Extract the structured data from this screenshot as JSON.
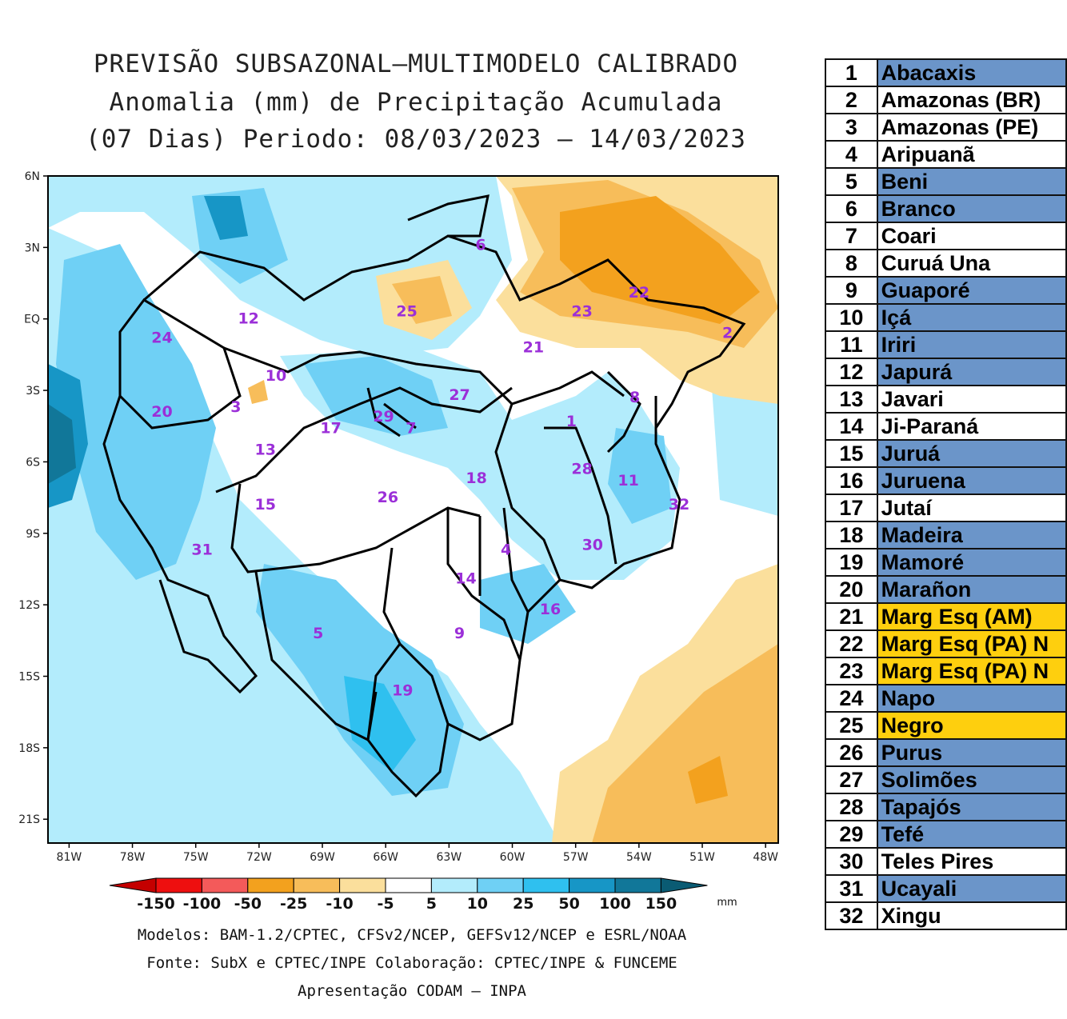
{
  "title": {
    "line1": "PREVISÃO SUBSAZONAL—MULTIMODELO CALIBRADO",
    "line2": "Anomalia (mm) de Precipitação Acumulada",
    "line3": "(07 Dias) Periodo: 08/03/2023 — 14/03/2023"
  },
  "axes": {
    "lat_ticks": [
      "6N",
      "3N",
      "EQ",
      "3S",
      "6S",
      "9S",
      "12S",
      "15S",
      "18S",
      "21S"
    ],
    "lon_ticks": [
      "81W",
      "78W",
      "75W",
      "72W",
      "69W",
      "66W",
      "63W",
      "60W",
      "57W",
      "54W",
      "51W",
      "48W"
    ]
  },
  "basin_labels": [
    {
      "id": "1",
      "x": -57.2,
      "y": -4.5
    },
    {
      "id": "2",
      "x": -49.8,
      "y": -0.8
    },
    {
      "id": "3",
      "x": -73.1,
      "y": -3.9
    },
    {
      "id": "4",
      "x": -60.3,
      "y": -9.9
    },
    {
      "id": "5",
      "x": -69.2,
      "y": -13.4
    },
    {
      "id": "6",
      "x": -61.5,
      "y": 2.9
    },
    {
      "id": "7",
      "x": -64.8,
      "y": -4.8
    },
    {
      "id": "8",
      "x": -54.2,
      "y": -3.5
    },
    {
      "id": "9",
      "x": -62.5,
      "y": -13.4
    },
    {
      "id": "10",
      "x": -71.2,
      "y": -2.6
    },
    {
      "id": "11",
      "x": -54.5,
      "y": -7.0
    },
    {
      "id": "12",
      "x": -72.5,
      "y": -0.2
    },
    {
      "id": "13",
      "x": -71.7,
      "y": -5.7
    },
    {
      "id": "14",
      "x": -62.2,
      "y": -11.1
    },
    {
      "id": "15",
      "x": -71.7,
      "y": -8.0
    },
    {
      "id": "16",
      "x": -58.2,
      "y": -12.4
    },
    {
      "id": "17",
      "x": -68.6,
      "y": -4.8
    },
    {
      "id": "18",
      "x": -61.7,
      "y": -6.9
    },
    {
      "id": "19",
      "x": -65.2,
      "y": -15.8
    },
    {
      "id": "20",
      "x": -76.6,
      "y": -4.1
    },
    {
      "id": "21",
      "x": -59.0,
      "y": -1.4
    },
    {
      "id": "22",
      "x": -54.0,
      "y": 0.9
    },
    {
      "id": "23",
      "x": -56.7,
      "y": 0.1
    },
    {
      "id": "24",
      "x": -76.6,
      "y": -1.0
    },
    {
      "id": "25",
      "x": -65.0,
      "y": 0.1
    },
    {
      "id": "26",
      "x": -65.9,
      "y": -7.7
    },
    {
      "id": "27",
      "x": -62.5,
      "y": -3.4
    },
    {
      "id": "28",
      "x": -56.7,
      "y": -6.5
    },
    {
      "id": "29",
      "x": -66.1,
      "y": -4.3
    },
    {
      "id": "30",
      "x": -56.2,
      "y": -9.7
    },
    {
      "id": "31",
      "x": -74.7,
      "y": -9.9
    },
    {
      "id": "32",
      "x": -52.1,
      "y": -8.0
    }
  ],
  "colorbar": {
    "labels": [
      "-150",
      "-100",
      "-50",
      "-25",
      "-10",
      "-5",
      "5",
      "10",
      "25",
      "50",
      "100",
      "150"
    ],
    "unit": "mm",
    "colors": [
      "#c40000",
      "#ee0f0f",
      "#f45a5a",
      "#f3a11e",
      "#f7bd5a",
      "#fbdf9c",
      "#ffffff",
      "#b3ecfc",
      "#6fd0f5",
      "#2fc0ef",
      "#1796c6",
      "#117799",
      "#0a5b73"
    ]
  },
  "footer": {
    "line1": "Modelos: BAM-1.2/CPTEC, CFSv2/NCEP, GEFSv12/NCEP e ESRL/NOAA",
    "line2": "Fonte: SubX e CPTEC/INPE      Colaboração: CPTEC/INPE & FUNCEME",
    "line3": "Apresentação CODAM — INPA"
  },
  "basins": [
    {
      "num": "1",
      "name": "Abacaxis",
      "color": "#6b95c9"
    },
    {
      "num": "2",
      "name": "Amazonas (BR)",
      "color": "#ffffff"
    },
    {
      "num": "3",
      "name": "Amazonas (PE)",
      "color": "#ffffff"
    },
    {
      "num": "4",
      "name": "Aripuanã",
      "color": "#ffffff"
    },
    {
      "num": "5",
      "name": "Beni",
      "color": "#6b95c9"
    },
    {
      "num": "6",
      "name": "Branco",
      "color": "#6b95c9"
    },
    {
      "num": "7",
      "name": "Coari",
      "color": "#ffffff"
    },
    {
      "num": "8",
      "name": "Curuá Una",
      "color": "#ffffff"
    },
    {
      "num": "9",
      "name": "Guaporé",
      "color": "#6b95c9"
    },
    {
      "num": "10",
      "name": "Içá",
      "color": "#6b95c9"
    },
    {
      "num": "11",
      "name": "Iriri",
      "color": "#6b95c9"
    },
    {
      "num": "12",
      "name": "Japurá",
      "color": "#6b95c9"
    },
    {
      "num": "13",
      "name": "Javari",
      "color": "#ffffff"
    },
    {
      "num": "14",
      "name": "Ji-Paraná",
      "color": "#ffffff"
    },
    {
      "num": "15",
      "name": "Juruá",
      "color": "#6b95c9"
    },
    {
      "num": "16",
      "name": "Juruena",
      "color": "#6b95c9"
    },
    {
      "num": "17",
      "name": "Jutaí",
      "color": "#ffffff"
    },
    {
      "num": "18",
      "name": "Madeira",
      "color": "#6b95c9"
    },
    {
      "num": "19",
      "name": "Mamoré",
      "color": "#6b95c9"
    },
    {
      "num": "20",
      "name": "Marañon",
      "color": "#6b95c9"
    },
    {
      "num": "21",
      "name": "Marg Esq (AM)",
      "color": "#fecf0e"
    },
    {
      "num": "22",
      "name": "Marg Esq (PA) N",
      "color": "#fecf0e"
    },
    {
      "num": "23",
      "name": "Marg Esq (PA) N",
      "color": "#fecf0e"
    },
    {
      "num": "24",
      "name": "Napo",
      "color": "#6b95c9"
    },
    {
      "num": "25",
      "name": "Negro",
      "color": "#fecf0e"
    },
    {
      "num": "26",
      "name": "Purus",
      "color": "#6b95c9"
    },
    {
      "num": "27",
      "name": "Solimões",
      "color": "#6b95c9"
    },
    {
      "num": "28",
      "name": "Tapajós",
      "color": "#6b95c9"
    },
    {
      "num": "29",
      "name": "Tefé",
      "color": "#6b95c9"
    },
    {
      "num": "30",
      "name": "Teles Pires",
      "color": "#ffffff"
    },
    {
      "num": "31",
      "name": "Ucayali",
      "color": "#6b95c9"
    },
    {
      "num": "32",
      "name": "Xingu",
      "color": "#ffffff"
    }
  ]
}
